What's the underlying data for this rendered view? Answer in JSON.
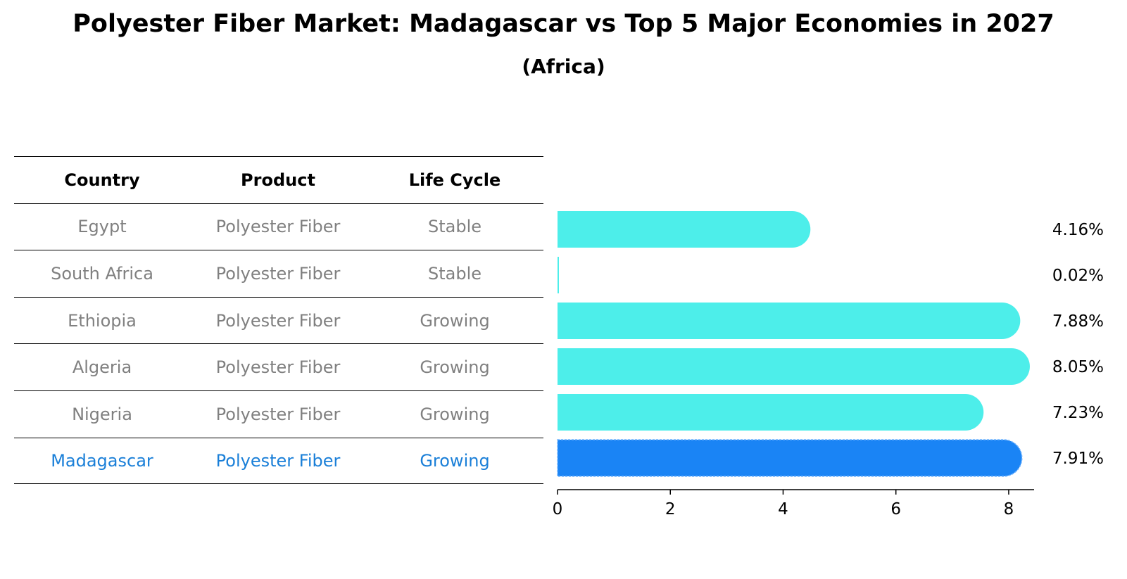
{
  "title": "Polyester Fiber Market: Madagascar vs Top 5 Major Economies in 2027",
  "subtitle": "(Africa)",
  "table": {
    "headers": [
      "Country",
      "Product",
      "Life Cycle"
    ],
    "rows": [
      [
        "Egypt",
        "Polyester Fiber",
        "Stable"
      ],
      [
        "South Africa",
        "Polyester Fiber",
        "Stable"
      ],
      [
        "Ethiopia",
        "Polyester Fiber",
        "Growing"
      ],
      [
        "Algeria",
        "Polyester Fiber",
        "Growing"
      ],
      [
        "Nigeria",
        "Polyester Fiber",
        "Growing"
      ],
      [
        "Madagascar",
        "Polyester Fiber",
        "Growing"
      ]
    ],
    "highlight_index": 5
  },
  "colors": {
    "bar": "#4deeea",
    "highlight_bar": "#1a84f5",
    "highlight_text": "#1a7fd8",
    "muted_text": "#808080"
  },
  "chart_data": {
    "type": "bar",
    "orientation": "horizontal",
    "title": "Polyester Fiber Market: Madagascar vs Top 5 Major Economies in 2027",
    "subtitle": "(Africa)",
    "categories": [
      "Egypt",
      "South Africa",
      "Ethiopia",
      "Algeria",
      "Nigeria",
      "Madagascar"
    ],
    "values": [
      4.16,
      0.02,
      7.88,
      8.05,
      7.23,
      7.91
    ],
    "labels": [
      "4.16%",
      "0.02%",
      "7.88%",
      "8.05%",
      "7.23%",
      "7.91%"
    ],
    "highlight": "Madagascar",
    "xlim": [
      0,
      8.45
    ],
    "xticks": [
      0,
      2,
      4,
      6,
      8
    ],
    "xtick_labels": [
      "0",
      "2",
      "4",
      "6",
      "8"
    ],
    "xlabel": "",
    "ylabel": "",
    "grid": false
  }
}
